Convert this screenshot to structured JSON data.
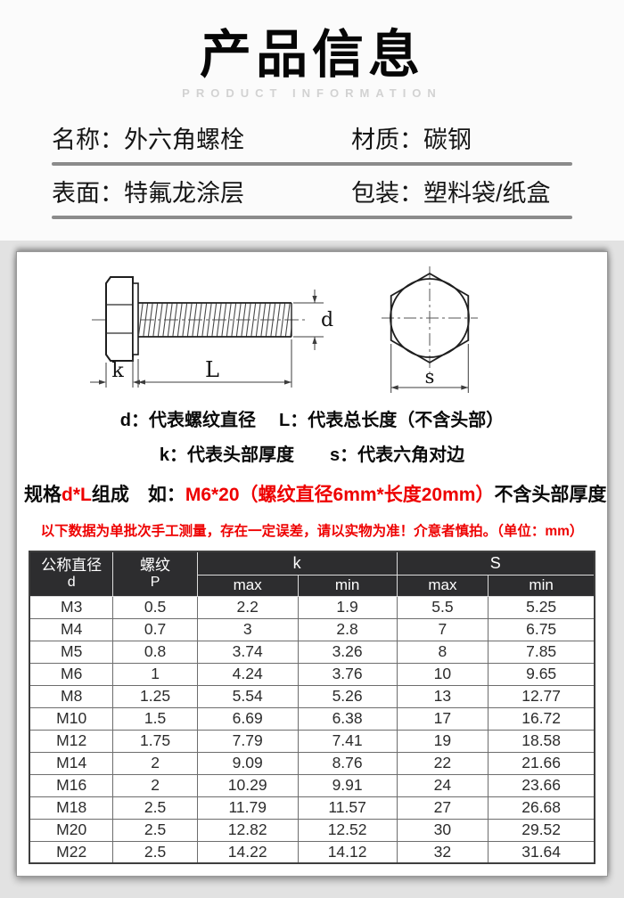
{
  "header": {
    "title": "产品信息",
    "subtitle": "PRODUCT INFORMATION",
    "row1": {
      "left": "名称：外六角螺栓",
      "right": "材质：碳钢"
    },
    "row2": {
      "left": "表面：特氟龙涂层",
      "right": "包装：塑料袋/纸盒"
    }
  },
  "diagram": {
    "label_d": "d",
    "label_L": "L",
    "label_k": "k",
    "label_s": "s"
  },
  "legend": {
    "line1_left": "d：代表螺纹直径",
    "line1_right": "L：代表总长度（不含头部）",
    "line2_left": "k：代表头部厚度",
    "line2_right": "s：代表六角对边"
  },
  "spec": {
    "prefix": "规格",
    "formula": "d*L",
    "middle": "组成　如：",
    "example": "M6*20（螺纹直径6mm*长度20mm）",
    "suffix": "不含头部厚度"
  },
  "warning": "以下数据为单批次手工测量，存在一定误差，请以实物为准！介意者慎拍。（单位：mm）",
  "table": {
    "headers": {
      "diameter_line1": "公称直径",
      "diameter_line2": "d",
      "thread_line1": "螺纹",
      "thread_line2": "P",
      "k_group": "k",
      "s_group": "S",
      "max": "max",
      "min": "min"
    },
    "rows": [
      [
        "M3",
        "0.5",
        "2.2",
        "1.9",
        "5.5",
        "5.25"
      ],
      [
        "M4",
        "0.7",
        "3",
        "2.8",
        "7",
        "6.75"
      ],
      [
        "M5",
        "0.8",
        "3.74",
        "3.26",
        "8",
        "7.85"
      ],
      [
        "M6",
        "1",
        "4.24",
        "3.76",
        "10",
        "9.65"
      ],
      [
        "M8",
        "1.25",
        "5.54",
        "5.26",
        "13",
        "12.77"
      ],
      [
        "M10",
        "1.5",
        "6.69",
        "6.38",
        "17",
        "16.72"
      ],
      [
        "M12",
        "1.75",
        "7.79",
        "7.41",
        "19",
        "18.58"
      ],
      [
        "M14",
        "2",
        "9.09",
        "8.76",
        "22",
        "21.66"
      ],
      [
        "M16",
        "2",
        "10.29",
        "9.91",
        "24",
        "23.66"
      ],
      [
        "M18",
        "2.5",
        "11.79",
        "11.57",
        "27",
        "26.68"
      ],
      [
        "M20",
        "2.5",
        "12.82",
        "12.52",
        "30",
        "29.52"
      ],
      [
        "M22",
        "2.5",
        "14.22",
        "14.12",
        "32",
        "31.64"
      ]
    ]
  },
  "colors": {
    "accent_red": "#ee0000",
    "table_header_bg": "#2d2d2f"
  }
}
